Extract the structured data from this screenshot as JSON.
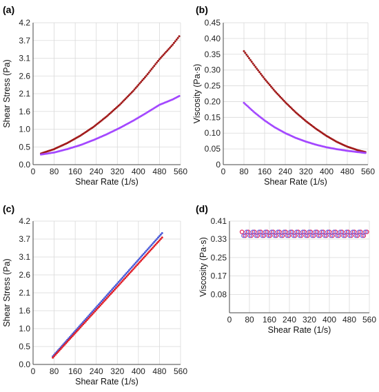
{
  "chart_data": [
    {
      "panel_label": "(a)",
      "type": "scatter",
      "xlabel": "Shear Rate (1/s)",
      "ylabel": "Shear Stress (Pa)",
      "xlim": [
        0,
        560
      ],
      "ylim": [
        0,
        4.2
      ],
      "x_ticks": [
        "0",
        "80",
        "160",
        "240",
        "320",
        "400",
        "480",
        "560"
      ],
      "y_ticks": [
        "0.0",
        "0.5",
        "1.0",
        "1.6",
        "2.1",
        "2.6",
        "3.1",
        "3.7",
        "4.2"
      ],
      "grid": true,
      "series": [
        {
          "color": "#a11a1a",
          "marker": "dot",
          "x": [
            30,
            80,
            130,
            180,
            230,
            280,
            330,
            380,
            430,
            480,
            530,
            555
          ],
          "y": [
            0.33,
            0.46,
            0.64,
            0.86,
            1.12,
            1.43,
            1.78,
            2.18,
            2.63,
            3.12,
            3.55,
            3.8
          ]
        },
        {
          "color": "#a347ff",
          "marker": "dot",
          "x": [
            30,
            80,
            130,
            180,
            230,
            280,
            330,
            380,
            430,
            480,
            530,
            555
          ],
          "y": [
            0.3,
            0.36,
            0.46,
            0.58,
            0.73,
            0.9,
            1.09,
            1.3,
            1.53,
            1.77,
            1.93,
            2.03
          ]
        }
      ]
    },
    {
      "panel_label": "(b)",
      "type": "scatter",
      "xlabel": "Shear Rate (1/s)",
      "ylabel": "Viscosity (Pa·s)",
      "xlim": [
        0,
        560
      ],
      "ylim": [
        0,
        0.45
      ],
      "x_ticks": [
        "0",
        "80",
        "160",
        "240",
        "320",
        "400",
        "480",
        "560"
      ],
      "y_ticks": [
        "0",
        "0.05",
        "0.10",
        "0.15",
        "0.20",
        "0.25",
        "0.30",
        "0.35",
        "0.40",
        "0.45"
      ],
      "grid": true,
      "series": [
        {
          "color": "#a11a1a",
          "marker": "dot",
          "x": [
            80,
            120,
            160,
            200,
            240,
            280,
            320,
            360,
            400,
            440,
            480,
            520,
            550
          ],
          "y": [
            0.36,
            0.315,
            0.272,
            0.233,
            0.198,
            0.166,
            0.138,
            0.113,
            0.091,
            0.072,
            0.057,
            0.046,
            0.04
          ]
        },
        {
          "color": "#a347ff",
          "marker": "dot",
          "x": [
            80,
            120,
            160,
            200,
            240,
            280,
            320,
            360,
            400,
            440,
            480,
            520,
            550
          ],
          "y": [
            0.196,
            0.166,
            0.14,
            0.118,
            0.1,
            0.085,
            0.073,
            0.063,
            0.055,
            0.049,
            0.044,
            0.04,
            0.037
          ]
        }
      ]
    },
    {
      "panel_label": "(c)",
      "type": "scatter",
      "xlabel": "Shear Rate (1/s)",
      "ylabel": "Shear Stress (Pa)",
      "xlim": [
        0,
        560
      ],
      "ylim": [
        0,
        4.2
      ],
      "x_ticks": [
        "0",
        "80",
        "160",
        "240",
        "320",
        "400",
        "480",
        "560"
      ],
      "y_ticks": [
        "0.0",
        "0.5",
        "1.0",
        "1.6",
        "2.1",
        "2.6",
        "3.1",
        "3.7",
        "4.2"
      ],
      "grid": true,
      "series": [
        {
          "color": "#4a5ad8",
          "marker": "dot",
          "x": [
            75,
            490
          ],
          "y": [
            0.24,
            3.85
          ]
        },
        {
          "color": "#e0202a",
          "marker": "dot",
          "x": [
            75,
            490
          ],
          "y": [
            0.2,
            3.72
          ]
        }
      ]
    },
    {
      "panel_label": "(d)",
      "type": "scatter",
      "xlabel": "Shear Rate (1/s)",
      "ylabel": "Viscosity (Pa·s)",
      "xlim": [
        0,
        560
      ],
      "ylim": [
        0,
        0.41
      ],
      "x_ticks": [
        "0",
        "80",
        "160",
        "240",
        "320",
        "400",
        "480",
        "560"
      ],
      "y_ticks": [
        "0.08",
        "0.17",
        "0.25",
        "0.33",
        "0.41"
      ],
      "y_tick_values": [
        0.082,
        0.165,
        0.247,
        0.33,
        0.41
      ],
      "grid": true,
      "series": [
        {
          "color": "#e0205a",
          "marker": "ring",
          "x_range": [
            50,
            550
          ],
          "y_band": [
            0.345,
            0.362
          ]
        },
        {
          "color": "#6d5ce0",
          "marker": "ring",
          "x_range": [
            50,
            550
          ],
          "y_band": [
            0.345,
            0.362
          ]
        }
      ]
    }
  ]
}
